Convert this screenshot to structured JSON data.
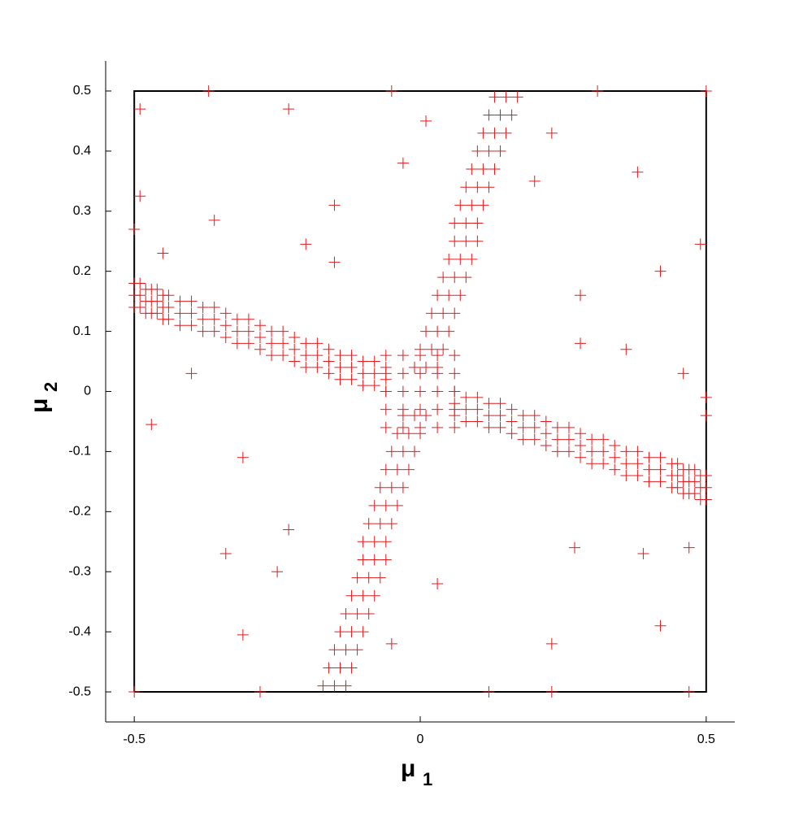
{
  "chart_data": {
    "type": "scatter",
    "xlabel": "μ",
    "xlabel_subscript": "1",
    "ylabel": "μ",
    "ylabel_subscript": "2",
    "xlim": [
      -0.55,
      0.55
    ],
    "ylim": [
      -0.55,
      0.55
    ],
    "xticks": [
      -0.5,
      0,
      0.5
    ],
    "yticks": [
      -0.5,
      -0.4,
      -0.3,
      -0.2,
      -0.1,
      0,
      0.1,
      0.2,
      0.3,
      0.4,
      0.5
    ],
    "grid": false,
    "box": {
      "x": [
        -0.5,
        0.5,
        0.5,
        -0.5,
        -0.5
      ],
      "y": [
        -0.5,
        -0.5,
        0.5,
        0.5,
        -0.5
      ],
      "color": "#000000"
    },
    "series": [
      {
        "color": "#e31a1c",
        "marker": "plus",
        "x": [
          -0.5,
          -0.5,
          -0.5,
          -0.49,
          -0.49,
          -0.49,
          -0.48,
          -0.48,
          -0.48,
          -0.47,
          -0.47,
          -0.47,
          -0.46,
          -0.46,
          -0.46,
          -0.45,
          -0.45,
          -0.45,
          -0.44,
          -0.44,
          -0.44,
          -0.42,
          -0.42,
          -0.42,
          -0.4,
          -0.4,
          -0.4,
          -0.38,
          -0.38,
          -0.38,
          -0.36,
          -0.36,
          -0.36,
          -0.34,
          -0.34,
          -0.34,
          -0.32,
          -0.32,
          -0.32,
          -0.3,
          -0.3,
          -0.3,
          -0.28,
          -0.28,
          -0.28,
          -0.26,
          -0.26,
          -0.26,
          -0.24,
          -0.24,
          -0.24,
          -0.22,
          -0.22,
          -0.22,
          -0.2,
          -0.2,
          -0.2,
          -0.18,
          -0.18,
          -0.18,
          -0.16,
          -0.16,
          -0.16,
          -0.14,
          -0.14,
          -0.14,
          -0.12,
          -0.12,
          -0.12,
          -0.1,
          -0.1,
          -0.1,
          -0.08,
          -0.08,
          -0.08,
          -0.06,
          -0.06,
          -0.06,
          0.5,
          0.5,
          0.5,
          0.49,
          0.49,
          0.49,
          0.48,
          0.48,
          0.48,
          0.47,
          0.47,
          0.47,
          0.46,
          0.46,
          0.46,
          0.45,
          0.45,
          0.45,
          0.44,
          0.44,
          0.44,
          0.42,
          0.42,
          0.42,
          0.4,
          0.4,
          0.4,
          0.38,
          0.38,
          0.38,
          0.36,
          0.36,
          0.36,
          0.34,
          0.34,
          0.34,
          0.32,
          0.32,
          0.32,
          0.3,
          0.3,
          0.3,
          0.28,
          0.28,
          0.28,
          0.26,
          0.26,
          0.26,
          0.24,
          0.24,
          0.24,
          0.22,
          0.22,
          0.22,
          0.2,
          0.2,
          0.2,
          0.18,
          0.18,
          0.18,
          0.16,
          0.16,
          0.16,
          0.14,
          0.14,
          0.14,
          0.12,
          0.12,
          0.12,
          0.1,
          0.1,
          0.1,
          0.08,
          0.08,
          0.08,
          0.06,
          0.06,
          0.06,
          -0.01,
          0.01,
          0.03,
          0,
          0.02,
          0.04,
          0.01,
          0.03,
          0.05,
          0.02,
          0.04,
          0.06,
          0.03,
          0.05,
          0.07,
          0.04,
          0.06,
          0.08,
          0.05,
          0.07,
          0.09,
          0.06,
          0.08,
          0.1,
          0.06,
          0.08,
          0.1,
          0.07,
          0.09,
          0.11,
          0.08,
          0.1,
          0.12,
          0.09,
          0.11,
          0.13,
          0.1,
          0.12,
          0.14,
          0.11,
          0.13,
          0.15,
          0.12,
          0.14,
          0.16,
          0.13,
          0.15,
          0.17,
          0.01,
          -0.01,
          -0.03,
          0,
          -0.02,
          -0.04,
          -0.01,
          -0.03,
          -0.05,
          -0.02,
          -0.04,
          -0.06,
          -0.03,
          -0.05,
          -0.07,
          -0.04,
          -0.06,
          -0.08,
          -0.05,
          -0.07,
          -0.09,
          -0.06,
          -0.08,
          -0.1,
          -0.06,
          -0.08,
          -0.1,
          -0.07,
          -0.09,
          -0.11,
          -0.08,
          -0.1,
          -0.12,
          -0.09,
          -0.11,
          -0.13,
          -0.1,
          -0.12,
          -0.14,
          -0.11,
          -0.13,
          -0.15,
          -0.12,
          -0.14,
          -0.16,
          -0.13,
          -0.15,
          -0.17,
          -0.06,
          -0.03,
          0,
          0.03,
          0.06,
          -0.06,
          -0.03,
          0,
          0.03,
          0.06,
          -0.06,
          -0.03,
          0,
          0.03,
          0.06,
          -0.06,
          -0.03,
          0,
          0.03,
          0.06,
          -0.06,
          -0.03,
          0,
          0.03,
          0.06,
          -0.37,
          -0.05,
          0.31,
          0.5,
          -0.49,
          -0.23,
          0.38,
          -0.49,
          -0.36,
          -0.15,
          0.49,
          -0.2,
          -0.15,
          0.42,
          -0.45,
          0.36,
          0.46,
          -0.47,
          -0.31,
          0.5,
          0.5,
          -0.34,
          -0.31,
          -0.23,
          -0.25,
          0.23,
          0.42,
          0.39,
          0.47,
          -0.5,
          -0.28,
          0.12,
          0.23,
          0.47,
          -0.05,
          0.03,
          0.27,
          0.01,
          -0.03,
          0.23,
          0.2,
          -0.5,
          -0.4,
          0.28,
          0.28
        ],
        "y": [
          0.18,
          0.16,
          0.14,
          0.18,
          0.16,
          0.14,
          0.17,
          0.15,
          0.13,
          0.17,
          0.15,
          0.13,
          0.17,
          0.15,
          0.13,
          0.16,
          0.14,
          0.12,
          0.16,
          0.14,
          0.12,
          0.15,
          0.13,
          0.11,
          0.15,
          0.13,
          0.11,
          0.14,
          0.12,
          0.1,
          0.14,
          0.12,
          0.1,
          0.13,
          0.11,
          0.09,
          0.12,
          0.1,
          0.08,
          0.12,
          0.1,
          0.08,
          0.11,
          0.09,
          0.07,
          0.1,
          0.08,
          0.06,
          0.1,
          0.08,
          0.06,
          0.09,
          0.07,
          0.05,
          0.08,
          0.06,
          0.04,
          0.08,
          0.06,
          0.04,
          0.07,
          0.05,
          0.03,
          0.06,
          0.04,
          0.02,
          0.06,
          0.04,
          0.02,
          0.05,
          0.03,
          0.01,
          0.05,
          0.03,
          0.01,
          0.04,
          0.02,
          0,
          -0.18,
          -0.16,
          -0.14,
          -0.18,
          -0.16,
          -0.14,
          -0.17,
          -0.15,
          -0.13,
          -0.17,
          -0.15,
          -0.13,
          -0.17,
          -0.15,
          -0.13,
          -0.16,
          -0.14,
          -0.12,
          -0.16,
          -0.14,
          -0.12,
          -0.15,
          -0.13,
          -0.11,
          -0.15,
          -0.13,
          -0.11,
          -0.14,
          -0.12,
          -0.1,
          -0.14,
          -0.12,
          -0.1,
          -0.13,
          -0.11,
          -0.09,
          -0.12,
          -0.1,
          -0.08,
          -0.12,
          -0.1,
          -0.08,
          -0.11,
          -0.09,
          -0.07,
          -0.1,
          -0.08,
          -0.06,
          -0.1,
          -0.08,
          -0.06,
          -0.09,
          -0.07,
          -0.05,
          -0.08,
          -0.06,
          -0.04,
          -0.08,
          -0.06,
          -0.04,
          -0.07,
          -0.05,
          -0.03,
          -0.06,
          -0.04,
          -0.02,
          -0.06,
          -0.04,
          -0.02,
          -0.05,
          -0.03,
          -0.01,
          -0.05,
          -0.03,
          -0.01,
          -0.04,
          -0.02,
          0,
          0.04,
          0.04,
          0.04,
          0.07,
          0.07,
          0.07,
          0.1,
          0.1,
          0.1,
          0.13,
          0.13,
          0.13,
          0.16,
          0.16,
          0.16,
          0.19,
          0.19,
          0.19,
          0.22,
          0.22,
          0.22,
          0.25,
          0.25,
          0.25,
          0.28,
          0.28,
          0.28,
          0.31,
          0.31,
          0.31,
          0.34,
          0.34,
          0.34,
          0.37,
          0.37,
          0.37,
          0.4,
          0.4,
          0.4,
          0.43,
          0.43,
          0.43,
          0.46,
          0.46,
          0.46,
          0.49,
          0.49,
          0.49,
          -0.04,
          -0.04,
          -0.04,
          -0.07,
          -0.07,
          -0.07,
          -0.1,
          -0.1,
          -0.1,
          -0.13,
          -0.13,
          -0.13,
          -0.16,
          -0.16,
          -0.16,
          -0.19,
          -0.19,
          -0.19,
          -0.22,
          -0.22,
          -0.22,
          -0.25,
          -0.25,
          -0.25,
          -0.28,
          -0.28,
          -0.28,
          -0.31,
          -0.31,
          -0.31,
          -0.34,
          -0.34,
          -0.34,
          -0.37,
          -0.37,
          -0.37,
          -0.4,
          -0.4,
          -0.4,
          -0.43,
          -0.43,
          -0.43,
          -0.46,
          -0.46,
          -0.46,
          -0.49,
          -0.49,
          -0.49,
          -0.06,
          -0.06,
          -0.06,
          -0.06,
          -0.06,
          -0.03,
          -0.03,
          -0.03,
          -0.03,
          -0.03,
          0,
          0,
          0,
          0,
          0,
          0.03,
          0.03,
          0.03,
          0.03,
          0.03,
          0.06,
          0.06,
          0.06,
          0.06,
          0.06,
          0.5,
          0.5,
          0.5,
          0.5,
          0.47,
          0.47,
          0.365,
          0.325,
          0.285,
          0.31,
          0.245,
          0.245,
          0.215,
          0.2,
          0.23,
          0.07,
          0.03,
          -0.055,
          -0.11,
          -0.04,
          -0.01,
          -0.27,
          -0.405,
          -0.23,
          -0.3,
          -0.42,
          -0.39,
          -0.27,
          -0.26,
          -0.5,
          -0.5,
          -0.5,
          -0.5,
          -0.5,
          -0.42,
          -0.32,
          -0.26,
          0.45,
          0.38,
          0.43,
          0.35,
          0.27,
          0.03,
          0.16,
          0.08
        ]
      }
    ]
  }
}
